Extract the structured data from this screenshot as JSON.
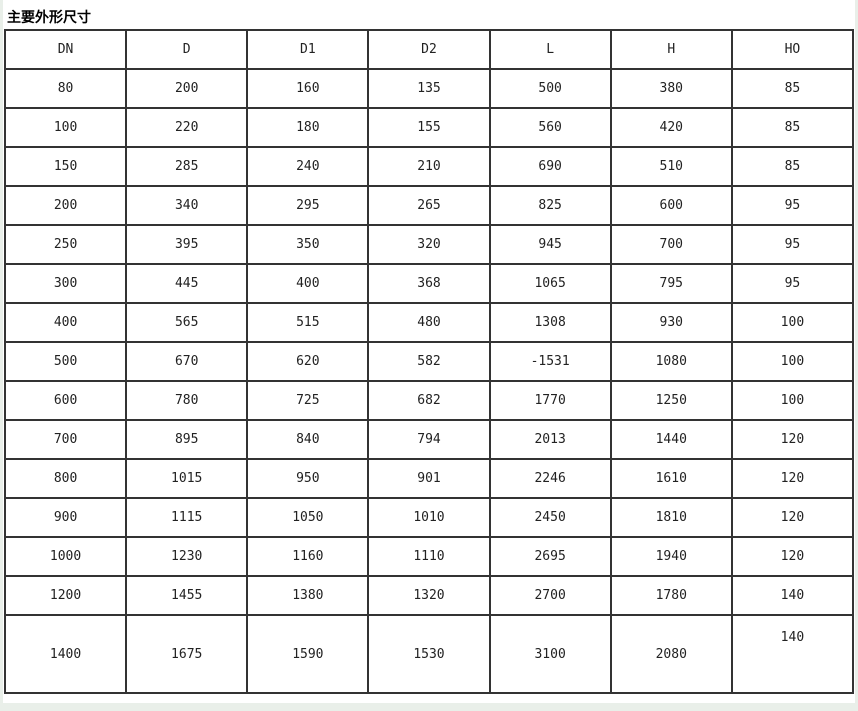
{
  "page": {
    "title": "主要外形尺寸"
  },
  "table": {
    "columns": [
      "DN",
      "D",
      "D1",
      "D2",
      "L",
      "H",
      "HO"
    ],
    "rows": [
      [
        "80",
        "200",
        "160",
        "135",
        "500",
        "380",
        "85"
      ],
      [
        "100",
        "220",
        "180",
        "155",
        "560",
        "420",
        "85"
      ],
      [
        "150",
        "285",
        "240",
        "210",
        "690",
        "510",
        "85"
      ],
      [
        "200",
        "340",
        "295",
        "265",
        "825",
        "600",
        "95"
      ],
      [
        "250",
        "395",
        "350",
        "320",
        "945",
        "700",
        "95"
      ],
      [
        "300",
        "445",
        "400",
        "368",
        "1065",
        "795",
        "95"
      ],
      [
        "400",
        "565",
        "515",
        "480",
        "1308",
        "930",
        "100"
      ],
      [
        "500",
        "670",
        "620",
        "582",
        "-1531",
        "1080",
        "100"
      ],
      [
        "600",
        "780",
        "725",
        "682",
        "1770",
        "1250",
        "100"
      ],
      [
        "700",
        "895",
        "840",
        "794",
        "2013",
        "1440",
        "120"
      ],
      [
        "800",
        "1015",
        "950",
        "901",
        "2246",
        "1610",
        "120"
      ],
      [
        "900",
        "1115",
        "1050",
        "1010",
        "2450",
        "1810",
        "120"
      ],
      [
        "1000",
        "1230",
        "1160",
        "1110",
        "2695",
        "1940",
        "120"
      ],
      [
        "1200",
        "1455",
        "1380",
        "1320",
        "2700",
        "1780",
        "140"
      ],
      [
        "1400",
        "1675",
        "1590",
        "1530",
        "3100",
        "2080",
        "140"
      ]
    ]
  },
  "colors": {
    "border": "#333333",
    "text": "#222222",
    "page_background": "#e9efe9",
    "content_background": "#ffffff"
  }
}
